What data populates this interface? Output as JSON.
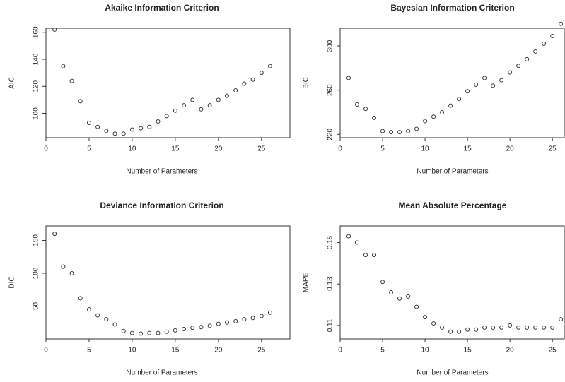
{
  "chart_data": [
    {
      "type": "scatter",
      "title": "Akaike Information Criterion",
      "x_label": "Number of Parameters",
      "y_label": "AIC",
      "x": [
        1,
        2,
        3,
        4,
        5,
        6,
        7,
        8,
        9,
        10,
        11,
        12,
        13,
        14,
        15,
        16,
        17,
        18,
        19,
        20,
        21,
        22,
        23,
        24,
        25,
        26
      ],
      "values": [
        162,
        135,
        124,
        109,
        93,
        90,
        87,
        85,
        85,
        88,
        89,
        90,
        94,
        98,
        102,
        106,
        110,
        103,
        106,
        110,
        113,
        117,
        122,
        125,
        130,
        135
      ],
      "xlim": [
        0,
        28.3
      ],
      "ylim": [
        82,
        163
      ],
      "xticks": [
        0,
        5,
        10,
        15,
        20,
        25
      ],
      "yticks": [
        100,
        120,
        140,
        160
      ]
    },
    {
      "type": "scatter",
      "title": "Bayesian Information Criterion",
      "x_label": "Number of Parameters",
      "y_label": "BIC",
      "x": [
        1,
        2,
        3,
        4,
        5,
        6,
        7,
        8,
        9,
        10,
        11,
        12,
        13,
        14,
        15,
        16,
        17,
        18,
        19,
        20,
        21,
        22,
        23,
        24,
        25,
        26
      ],
      "values": [
        271,
        247,
        243,
        235,
        223,
        222,
        222,
        223,
        225,
        232,
        236,
        240,
        246,
        252,
        259,
        265,
        271,
        264,
        269,
        276,
        282,
        288,
        295,
        302,
        309,
        320
      ],
      "xlim": [
        0,
        26.4
      ],
      "ylim": [
        217,
        316
      ],
      "xticks": [
        0,
        5,
        10,
        15,
        20,
        25
      ],
      "yticks": [
        220,
        260,
        300
      ]
    },
    {
      "type": "scatter",
      "title": "Deviance Information Criterion",
      "x_label": "Number of Parameters",
      "y_label": "DIC",
      "x": [
        1,
        2,
        3,
        4,
        5,
        6,
        7,
        8,
        9,
        10,
        11,
        12,
        13,
        14,
        15,
        16,
        17,
        18,
        19,
        20,
        21,
        22,
        23,
        24,
        25,
        26
      ],
      "values": [
        160,
        110,
        100,
        62,
        45,
        36,
        30,
        22,
        12,
        9,
        8,
        9,
        9,
        11,
        13,
        15,
        17,
        18,
        20,
        23,
        25,
        27,
        30,
        32,
        35,
        40
      ],
      "xlim": [
        0,
        28.3
      ],
      "ylim": [
        0,
        172
      ],
      "xticks": [
        0,
        5,
        10,
        15,
        20,
        25
      ],
      "yticks": [
        50,
        100,
        150
      ]
    },
    {
      "type": "scatter",
      "title": "Mean Absolute Percentage",
      "x_label": "Number of Parameters",
      "y_label": "MAPE",
      "x": [
        1,
        2,
        3,
        4,
        5,
        6,
        7,
        8,
        9,
        10,
        11,
        12,
        13,
        14,
        15,
        16,
        17,
        18,
        19,
        20,
        21,
        22,
        23,
        24,
        25,
        26
      ],
      "values": [
        0.153,
        0.15,
        0.144,
        0.144,
        0.131,
        0.126,
        0.123,
        0.124,
        0.119,
        0.114,
        0.111,
        0.109,
        0.107,
        0.107,
        0.108,
        0.108,
        0.109,
        0.109,
        0.109,
        0.11,
        0.109,
        0.109,
        0.109,
        0.109,
        0.109,
        0.113
      ],
      "xlim": [
        0,
        26.4
      ],
      "ylim": [
        0.1035,
        0.158
      ],
      "xticks": [
        0,
        5,
        10,
        15,
        20,
        25
      ],
      "yticks": [
        0.11,
        0.13,
        0.15
      ]
    }
  ]
}
